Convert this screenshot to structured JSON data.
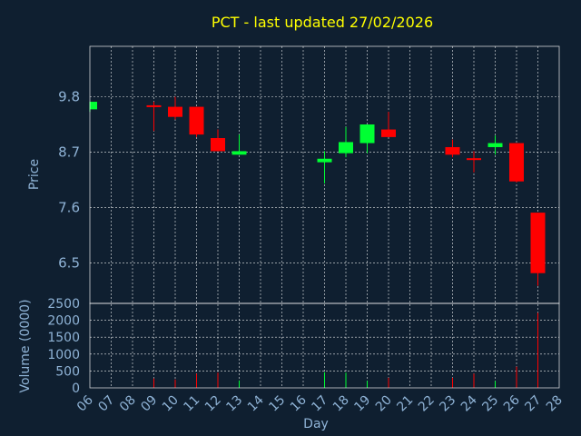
{
  "chart_data": {
    "type": "candlestick",
    "title": "PCT - last updated 27/02/2026",
    "ylabel": "Price",
    "ylabel_volume": "Volume (0000)",
    "xlabel": "Day",
    "ylim": [
      5.7,
      10.8
    ],
    "ylim_volume": [
      0,
      2500
    ],
    "yticks": [
      6.5,
      7.6,
      8.7,
      9.8
    ],
    "ytick_labels": [
      "6.5",
      "7.6",
      "8.7",
      "9.8"
    ],
    "yticks_volume": [
      0,
      500,
      1000,
      1500,
      2000,
      2500
    ],
    "ytick_labels_volume": [
      "0",
      "500",
      "1000",
      "1500",
      "2000",
      "2500"
    ],
    "x_labels": [
      "06",
      "07",
      "08",
      "09",
      "10",
      "11",
      "12",
      "13",
      "14",
      "15",
      "16",
      "17",
      "18",
      "19",
      "20",
      "21",
      "22",
      "23",
      "24",
      "25",
      "26",
      "27",
      "28"
    ],
    "up_color": "#00ff33",
    "down_color": "#ff0000",
    "candles": [
      {
        "day": "06",
        "open": 9.55,
        "high": 9.7,
        "low": 9.5,
        "close": 9.7,
        "volume": 0
      },
      {
        "day": "09",
        "open": 9.63,
        "high": 9.7,
        "low": 9.12,
        "close": 9.6,
        "volume": 280
      },
      {
        "day": "10",
        "open": 9.6,
        "high": 9.8,
        "low": 9.35,
        "close": 9.4,
        "volume": 250
      },
      {
        "day": "11",
        "open": 9.6,
        "high": 9.6,
        "low": 9.0,
        "close": 9.05,
        "volume": 420
      },
      {
        "day": "12",
        "open": 8.98,
        "high": 9.15,
        "low": 8.72,
        "close": 8.72,
        "volume": 450
      },
      {
        "day": "13",
        "open": 8.65,
        "high": 9.05,
        "low": 8.65,
        "close": 8.72,
        "volume": 220
      },
      {
        "day": "17",
        "open": 8.5,
        "high": 8.72,
        "low": 8.08,
        "close": 8.57,
        "volume": 460
      },
      {
        "day": "18",
        "open": 8.68,
        "high": 9.2,
        "low": 8.6,
        "close": 8.9,
        "volume": 450
      },
      {
        "day": "19",
        "open": 8.88,
        "high": 9.25,
        "low": 8.68,
        "close": 9.25,
        "volume": 210
      },
      {
        "day": "20",
        "open": 9.15,
        "high": 9.5,
        "low": 9.0,
        "close": 9.0,
        "volume": 300
      },
      {
        "day": "23",
        "open": 8.8,
        "high": 8.95,
        "low": 8.6,
        "close": 8.65,
        "volume": 300
      },
      {
        "day": "24",
        "open": 8.58,
        "high": 8.72,
        "low": 8.3,
        "close": 8.55,
        "volume": 420
      },
      {
        "day": "25",
        "open": 8.8,
        "high": 9.03,
        "low": 8.65,
        "close": 8.88,
        "volume": 200
      },
      {
        "day": "26",
        "open": 8.88,
        "high": 8.88,
        "low": 8.1,
        "close": 8.12,
        "volume": 630
      },
      {
        "day": "27",
        "open": 7.5,
        "high": 7.5,
        "low": 6.05,
        "close": 6.3,
        "volume": 2220
      }
    ]
  }
}
